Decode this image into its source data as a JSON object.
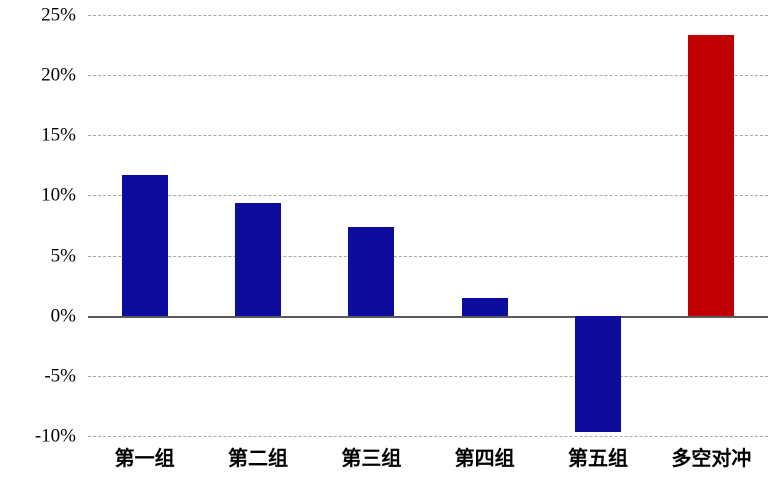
{
  "chart_data": {
    "type": "bar",
    "categories": [
      "第一组",
      "第二组",
      "第三组",
      "第四组",
      "第五组",
      "多空对冲"
    ],
    "values": [
      11.7,
      9.4,
      7.4,
      1.5,
      -9.7,
      23.3
    ],
    "bar_colors": [
      "#0d0d9b",
      "#0d0d9b",
      "#0d0d9b",
      "#0d0d9b",
      "#0d0d9b",
      "#c00000"
    ],
    "title": "",
    "xlabel": "",
    "ylabel": "",
    "ylim": [
      -10,
      25
    ],
    "ytick_step": 5,
    "ytick_labels": [
      "25%",
      "20%",
      "15%",
      "10%",
      "5%",
      "0%",
      "-5%",
      "-10%"
    ],
    "grid": "horizontal-dashed",
    "legend": "none"
  },
  "colors": {
    "bar_default": "#0d0d9b",
    "bar_highlight": "#c00000",
    "gridline": "#a6a6a6",
    "zero_axis": "#595959",
    "text": "#000000",
    "background": "#ffffff"
  }
}
